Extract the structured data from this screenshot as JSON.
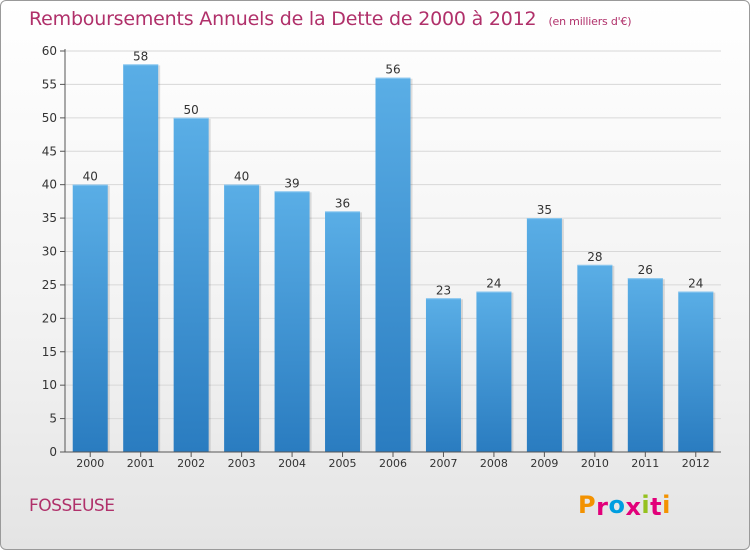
{
  "header": {
    "title": "Remboursements Annuels de la Dette de 2000 à 2012",
    "subtitle": "(en milliers d'€)"
  },
  "footer": {
    "commune": "FOSSEUSE",
    "logo_text": "Proxiti",
    "logo_colors": [
      "#f39200",
      "#e2007a",
      "#009ee0",
      "#e2007a",
      "#95c11f",
      "#e2007a",
      "#f39200"
    ]
  },
  "colors": {
    "bar_top": "#5aaee6",
    "bar_bottom": "#2a7cc0",
    "title": "#b0306a"
  },
  "chart_data": {
    "type": "bar",
    "title": "Remboursements Annuels de la Dette de 2000 à 2012",
    "xlabel": "",
    "ylabel": "",
    "categories": [
      "2000",
      "2001",
      "2002",
      "2003",
      "2004",
      "2005",
      "2006",
      "2007",
      "2008",
      "2009",
      "2010",
      "2011",
      "2012"
    ],
    "values": [
      40,
      58,
      50,
      40,
      39,
      36,
      56,
      23,
      24,
      35,
      28,
      26,
      24
    ],
    "ylim": [
      0,
      60
    ],
    "yticks": [
      0,
      5,
      10,
      15,
      20,
      25,
      30,
      35,
      40,
      45,
      50,
      55,
      60
    ],
    "grid": true
  }
}
